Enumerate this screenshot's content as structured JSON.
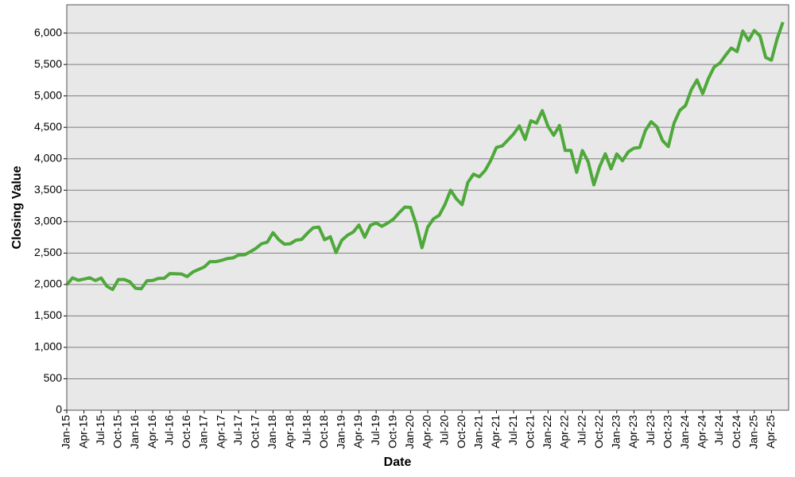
{
  "chart_data": {
    "type": "line",
    "xlabel": "Date",
    "ylabel": "Closing Value",
    "x": [
      "2015-01",
      "2015-02",
      "2015-03",
      "2015-04",
      "2015-05",
      "2015-06",
      "2015-07",
      "2015-08",
      "2015-09",
      "2015-10",
      "2015-11",
      "2015-12",
      "2016-01",
      "2016-02",
      "2016-03",
      "2016-04",
      "2016-05",
      "2016-06",
      "2016-07",
      "2016-08",
      "2016-09",
      "2016-10",
      "2016-11",
      "2016-12",
      "2017-01",
      "2017-02",
      "2017-03",
      "2017-04",
      "2017-05",
      "2017-06",
      "2017-07",
      "2017-08",
      "2017-09",
      "2017-10",
      "2017-11",
      "2017-12",
      "2018-01",
      "2018-02",
      "2018-03",
      "2018-04",
      "2018-05",
      "2018-06",
      "2018-07",
      "2018-08",
      "2018-09",
      "2018-10",
      "2018-11",
      "2018-12",
      "2019-01",
      "2019-02",
      "2019-03",
      "2019-04",
      "2019-05",
      "2019-06",
      "2019-07",
      "2019-08",
      "2019-09",
      "2019-10",
      "2019-11",
      "2019-12",
      "2020-01",
      "2020-02",
      "2020-03",
      "2020-04",
      "2020-05",
      "2020-06",
      "2020-07",
      "2020-08",
      "2020-09",
      "2020-10",
      "2020-11",
      "2020-12",
      "2021-01",
      "2021-02",
      "2021-03",
      "2021-04",
      "2021-05",
      "2021-06",
      "2021-07",
      "2021-08",
      "2021-09",
      "2021-10",
      "2021-11",
      "2021-12",
      "2022-01",
      "2022-02",
      "2022-03",
      "2022-04",
      "2022-05",
      "2022-06",
      "2022-07",
      "2022-08",
      "2022-09",
      "2022-10",
      "2022-11",
      "2022-12",
      "2023-01",
      "2023-02",
      "2023-03",
      "2023-04",
      "2023-05",
      "2023-06",
      "2023-07",
      "2023-08",
      "2023-09",
      "2023-10",
      "2023-11",
      "2023-12",
      "2024-01",
      "2024-02",
      "2024-03",
      "2024-04",
      "2024-05",
      "2024-06",
      "2024-07",
      "2024-08",
      "2024-09",
      "2024-10",
      "2024-11",
      "2024-12",
      "2025-01",
      "2025-02",
      "2025-03",
      "2025-04",
      "2025-05",
      "2025-06"
    ],
    "series": [
      {
        "name": "Closing Value",
        "color": "#4ea83a",
        "values": [
          1995,
          2105,
          2068,
          2086,
          2107,
          2063,
          2104,
          1972,
          1920,
          2079,
          2080,
          2044,
          1940,
          1932,
          2060,
          2065,
          2097,
          2099,
          2174,
          2171,
          2168,
          2126,
          2199,
          2239,
          2279,
          2364,
          2363,
          2384,
          2412,
          2423,
          2470,
          2472,
          2519,
          2575,
          2648,
          2674,
          2824,
          2714,
          2641,
          2648,
          2705,
          2718,
          2816,
          2902,
          2914,
          2712,
          2760,
          2507,
          2704,
          2784,
          2834,
          2946,
          2752,
          2942,
          2980,
          2926,
          2977,
          3038,
          3141,
          3231,
          3226,
          2954,
          2585,
          2912,
          3044,
          3100,
          3271,
          3500,
          3363,
          3270,
          3622,
          3756,
          3714,
          3811,
          3973,
          4181,
          4204,
          4298,
          4395,
          4523,
          4308,
          4605,
          4567,
          4766,
          4516,
          4374,
          4530,
          4132,
          4132,
          3785,
          4130,
          3955,
          3586,
          3872,
          4080,
          3840,
          4077,
          3970,
          4109,
          4169,
          4180,
          4450,
          4589,
          4508,
          4288,
          4194,
          4568,
          4770,
          4846,
          5096,
          5254,
          5036,
          5278,
          5460,
          5522,
          5648,
          5762,
          5705,
          6032,
          5882,
          6041,
          5955,
          5612,
          5569,
          5912,
          6173
        ]
      }
    ],
    "xlim": [
      "2015-01",
      "2025-07"
    ],
    "xticks": [
      {
        "value": "2015-01",
        "label": "Jan-15"
      },
      {
        "value": "2015-04",
        "label": "Apr-15"
      },
      {
        "value": "2015-07",
        "label": "Jul-15"
      },
      {
        "value": "2015-10",
        "label": "Oct-15"
      },
      {
        "value": "2016-01",
        "label": "Jan-16"
      },
      {
        "value": "2016-04",
        "label": "Apr-16"
      },
      {
        "value": "2016-07",
        "label": "Jul-16"
      },
      {
        "value": "2016-10",
        "label": "Oct-16"
      },
      {
        "value": "2017-01",
        "label": "Jan-17"
      },
      {
        "value": "2017-04",
        "label": "Apr-17"
      },
      {
        "value": "2017-07",
        "label": "Jul-17"
      },
      {
        "value": "2017-10",
        "label": "Oct-17"
      },
      {
        "value": "2018-01",
        "label": "Jan-18"
      },
      {
        "value": "2018-04",
        "label": "Apr-18"
      },
      {
        "value": "2018-07",
        "label": "Jul-18"
      },
      {
        "value": "2018-10",
        "label": "Oct-18"
      },
      {
        "value": "2019-01",
        "label": "Jan-19"
      },
      {
        "value": "2019-04",
        "label": "Apr-19"
      },
      {
        "value": "2019-07",
        "label": "Jul-19"
      },
      {
        "value": "2019-10",
        "label": "Oct-19"
      },
      {
        "value": "2020-01",
        "label": "Jan-20"
      },
      {
        "value": "2020-04",
        "label": "Apr-20"
      },
      {
        "value": "2020-07",
        "label": "Jul-20"
      },
      {
        "value": "2020-10",
        "label": "Oct-20"
      },
      {
        "value": "2021-01",
        "label": "Jan-21"
      },
      {
        "value": "2021-04",
        "label": "Apr-21"
      },
      {
        "value": "2021-07",
        "label": "Jul-21"
      },
      {
        "value": "2021-10",
        "label": "Oct-21"
      },
      {
        "value": "2022-01",
        "label": "Jan-22"
      },
      {
        "value": "2022-04",
        "label": "Apr-22"
      },
      {
        "value": "2022-07",
        "label": "Jul-22"
      },
      {
        "value": "2022-10",
        "label": "Oct-22"
      },
      {
        "value": "2023-01",
        "label": "Jan-23"
      },
      {
        "value": "2023-04",
        "label": "Apr-23"
      },
      {
        "value": "2023-07",
        "label": "Jul-23"
      },
      {
        "value": "2023-10",
        "label": "Oct-23"
      },
      {
        "value": "2024-01",
        "label": "Jan-24"
      },
      {
        "value": "2024-04",
        "label": "Apr-24"
      },
      {
        "value": "2024-07",
        "label": "Jul-24"
      },
      {
        "value": "2024-10",
        "label": "Oct-24"
      },
      {
        "value": "2025-01",
        "label": "Jan-25"
      },
      {
        "value": "2025-04",
        "label": "Apr-25"
      }
    ],
    "ylim": [
      0,
      6450
    ],
    "yticks": [
      0,
      500,
      {
        "value": 1000,
        "label": "1,000"
      },
      {
        "value": 1500,
        "label": "1,500"
      },
      {
        "value": 2000,
        "label": "2,000"
      },
      {
        "value": 2500,
        "label": "2,500"
      },
      {
        "value": 3000,
        "label": "3,000"
      },
      {
        "value": 3500,
        "label": "3,500"
      },
      {
        "value": 4000,
        "label": "4,000"
      },
      {
        "value": 4500,
        "label": "4,500"
      },
      {
        "value": 5000,
        "label": "5,000"
      },
      {
        "value": 5500,
        "label": "5,500"
      },
      {
        "value": 6000,
        "label": "6,000"
      }
    ],
    "grid": true
  }
}
